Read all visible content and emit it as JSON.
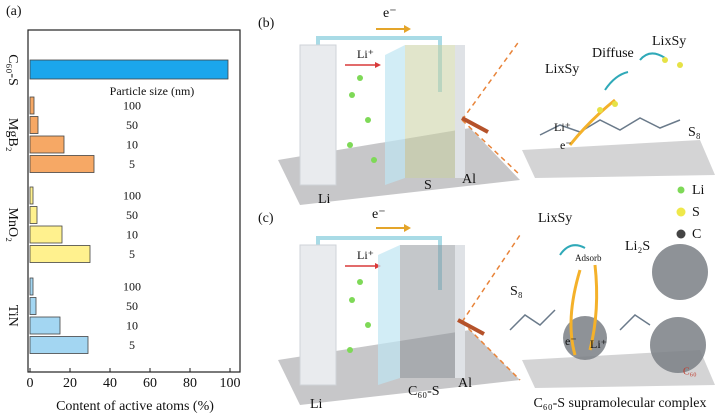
{
  "chart_data": {
    "type": "bar",
    "orientation": "horizontal",
    "panel_label": "(a)",
    "xlabel": "Content of active atoms (%)",
    "legend_title": "Particle size (nm)",
    "xlim": [
      0,
      105
    ],
    "xticks": [
      0,
      20,
      40,
      60,
      80,
      100
    ],
    "series": [
      {
        "name": "C₆₀-S",
        "color": "#1ba6ec",
        "categories": [
          null
        ],
        "values": [
          99
        ]
      },
      {
        "name": "MgB₂",
        "color": "#f6a865",
        "categories": [
          "100",
          "50",
          "10",
          "5"
        ],
        "values": [
          2,
          4,
          17,
          32
        ]
      },
      {
        "name": "MnO₂",
        "color": "#fff18e",
        "categories": [
          "100",
          "50",
          "10",
          "5"
        ],
        "values": [
          1.5,
          3.5,
          16,
          30
        ]
      },
      {
        "name": "TiN",
        "color": "#a3d6f2",
        "categories": [
          "100",
          "50",
          "10",
          "5"
        ],
        "values": [
          1.5,
          3,
          15,
          29
        ]
      }
    ]
  },
  "panel_b": {
    "label": "(b)",
    "electron": "e⁻",
    "li_ion": "Li⁺",
    "anode": "Li",
    "cathode": "S",
    "collector": "Al",
    "zoom": {
      "product1": "LixSy",
      "diffuse": "Diffuse",
      "product2": "LixSy",
      "li_ion": "Li⁺",
      "electron": "e⁻",
      "s8": "S₈"
    }
  },
  "legend": {
    "li": "Li",
    "s": "S",
    "c": "C"
  },
  "panel_c": {
    "label": "(c)",
    "electron": "e⁻",
    "li_ion": "Li⁺",
    "anode": "Li",
    "cathode": "C₆₀-S",
    "collector": "Al",
    "zoom": {
      "product": "LixSy",
      "adsorb": "Adsorb",
      "li2s": "Li₂S",
      "s8": "S₈",
      "electron": "e⁻",
      "li_ion": "Li⁺",
      "c60": "C₆₀",
      "caption": "C₆₀-S supramolecular complex"
    }
  }
}
